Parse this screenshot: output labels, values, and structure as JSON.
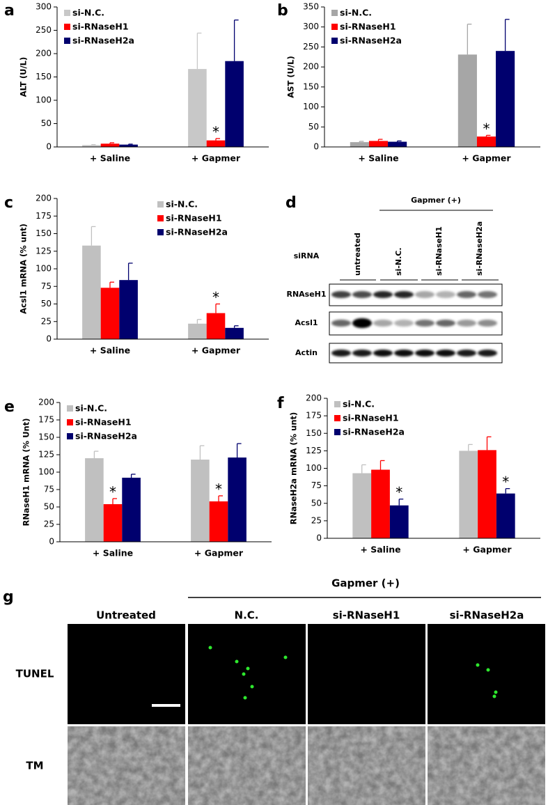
{
  "chart_data": [
    {
      "type": "bar",
      "panel_label": "a",
      "y_label": "ALT (U/L)",
      "categories": [
        "+ Saline",
        "+ Gapmer"
      ],
      "ylim": [
        0,
        300
      ],
      "yticks": [
        0,
        50,
        100,
        150,
        200,
        250,
        300
      ],
      "legend": "upper left",
      "series": [
        {
          "name": "si-N.C.",
          "color": "#c8c8c8",
          "values": [
            4,
            167
          ],
          "errors": [
            1,
            77
          ],
          "markers": [
            null,
            null
          ]
        },
        {
          "name": "si-RNaseH1",
          "color": "#ff0000",
          "values": [
            7,
            14
          ],
          "errors": [
            2,
            4
          ],
          "markers": [
            null,
            "*"
          ]
        },
        {
          "name": "si-RNaseH2a",
          "color": "#00006e",
          "values": [
            5,
            184
          ],
          "errors": [
            1,
            88
          ],
          "markers": [
            null,
            null
          ]
        }
      ]
    },
    {
      "type": "bar",
      "panel_label": "b",
      "y_label": "AST (U/L)",
      "categories": [
        "+ Saline",
        "+ Gapmer"
      ],
      "ylim": [
        0,
        350
      ],
      "yticks": [
        0,
        50,
        100,
        150,
        200,
        250,
        300,
        350
      ],
      "legend": "upper left",
      "series": [
        {
          "name": "si-N.C.",
          "color": "#a6a6a6",
          "values": [
            12,
            231
          ],
          "errors": [
            2,
            76
          ],
          "markers": [
            null,
            null
          ]
        },
        {
          "name": "si-RNaseH1",
          "color": "#ff0000",
          "values": [
            15,
            26
          ],
          "errors": [
            4,
            3
          ],
          "markers": [
            null,
            "*"
          ]
        },
        {
          "name": "si-RNaseH2a",
          "color": "#00006e",
          "values": [
            13,
            240
          ],
          "errors": [
            2,
            79
          ],
          "markers": [
            null,
            null
          ]
        }
      ]
    },
    {
      "type": "bar",
      "panel_label": "c",
      "y_label": "Acsl1 mRNA (% unt)",
      "categories": [
        "+ Saline",
        "+ Gapmer"
      ],
      "ylim": [
        0,
        200
      ],
      "yticks": [
        0,
        25,
        50,
        75,
        100,
        125,
        150,
        175,
        200
      ],
      "legend": "upper right",
      "series": [
        {
          "name": "si-N.C.",
          "color": "#c0c0c0",
          "values": [
            133,
            22
          ],
          "errors": [
            27,
            6
          ],
          "markers": [
            null,
            null
          ]
        },
        {
          "name": "si-RNaseH1",
          "color": "#ff0000",
          "values": [
            73,
            37
          ],
          "errors": [
            8,
            13
          ],
          "markers": [
            null,
            "*"
          ]
        },
        {
          "name": "si-RNaseH2a",
          "color": "#00006e",
          "values": [
            84,
            16
          ],
          "errors": [
            24,
            3
          ],
          "markers": [
            null,
            null
          ]
        }
      ]
    },
    {
      "type": "bar",
      "panel_label": "e",
      "y_label": "RNaseH1 mRNA (% Unt)",
      "categories": [
        "+ Saline",
        "+ Gapmer"
      ],
      "ylim": [
        0,
        200
      ],
      "yticks": [
        0,
        25,
        50,
        75,
        100,
        125,
        150,
        175,
        200
      ],
      "legend": "upper left",
      "series": [
        {
          "name": "si-N.C.",
          "color": "#c0c0c0",
          "values": [
            120,
            118
          ],
          "errors": [
            10,
            20
          ],
          "markers": [
            null,
            null
          ]
        },
        {
          "name": "si-RNaseH1",
          "color": "#ff0000",
          "values": [
            54,
            58
          ],
          "errors": [
            8,
            8
          ],
          "markers": [
            "*",
            "*"
          ]
        },
        {
          "name": "si-RNaseH2a",
          "color": "#00006e",
          "values": [
            92,
            121
          ],
          "errors": [
            5,
            20
          ],
          "markers": [
            null,
            null
          ]
        }
      ]
    },
    {
      "type": "bar",
      "panel_label": "f",
      "y_label": "RNaseH2a mRNA (% unt)",
      "categories": [
        "+ Saline",
        "+ Gapmer"
      ],
      "ylim": [
        0,
        200
      ],
      "yticks": [
        0,
        25,
        50,
        75,
        100,
        125,
        150,
        175,
        200
      ],
      "legend": "upper left",
      "series": [
        {
          "name": "si-N.C.",
          "color": "#c0c0c0",
          "values": [
            93,
            125
          ],
          "errors": [
            12,
            9
          ],
          "markers": [
            null,
            null
          ]
        },
        {
          "name": "si-RNaseH1",
          "color": "#ff0000",
          "values": [
            98,
            126
          ],
          "errors": [
            13,
            19
          ],
          "markers": [
            null,
            null
          ]
        },
        {
          "name": "si-RNaseH2a",
          "color": "#00006e",
          "values": [
            47,
            64
          ],
          "errors": [
            9,
            7
          ],
          "markers": [
            "*",
            "*"
          ]
        }
      ]
    }
  ],
  "blot": {
    "panel_label": "d",
    "header": "Gapmer (+)",
    "row_label": "siRNA",
    "lanes": [
      "untreated",
      "si-N.C.",
      "si-RNaseH1",
      "si-RNaseH2a"
    ],
    "bands": [
      "RNAseH1",
      "Acsl1",
      "Actin"
    ]
  },
  "micrographs": {
    "panel_label": "g",
    "header": "Gapmer (+)",
    "columns": [
      "Untreated",
      "N.C.",
      "si-RNaseH1",
      "si-RNaseH2a"
    ],
    "rows": [
      "TUNEL",
      "TM"
    ]
  }
}
